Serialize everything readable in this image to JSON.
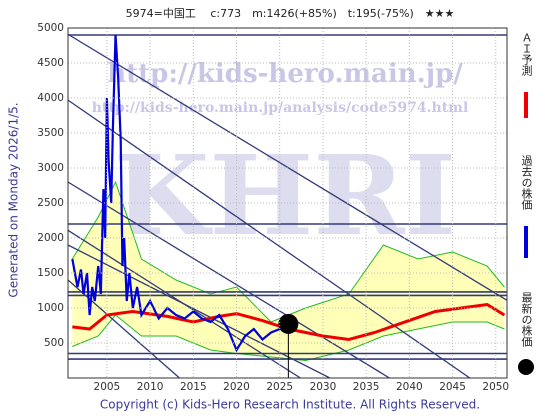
{
  "chart_data": {
    "type": "line",
    "title": "5974=中国工　 c:773　m:1426(+85%)　t:195(-75%)　★★★",
    "generated": "Generated on Monday 2026/1/5.",
    "copyright": "Copyright (c) Kids-Hero Research Institute. All Rights Reserved.",
    "watermarks": [
      "http://kids-hero.main.jp/",
      "http://kids-hero.main.jp/analysis/code5974.html",
      "KHRI"
    ],
    "xlim": [
      2000.5,
      2051.3
    ],
    "ylim": [
      0,
      5000
    ],
    "xticks": [
      2005,
      2010,
      2015,
      2020,
      2025,
      2030,
      2035,
      2040,
      2045,
      2050
    ],
    "yticks": [
      500,
      1000,
      1500,
      2000,
      2500,
      3000,
      3500,
      4000,
      4500,
      5000
    ],
    "grid": true,
    "series": [
      {
        "name": "ＡＩ予測",
        "color": "#ee0000",
        "x": [
          2001,
          2003,
          2005,
          2008,
          2012,
          2015,
          2018,
          2020,
          2023,
          2026,
          2030,
          2033,
          2036,
          2039,
          2043,
          2046,
          2049,
          2051
        ],
        "values": [
          730,
          700,
          900,
          950,
          880,
          800,
          880,
          920,
          820,
          700,
          600,
          550,
          650,
          780,
          950,
          1000,
          1050,
          900
        ]
      },
      {
        "name": "過去の株価",
        "color": "#0000dd",
        "x": [
          2001,
          2001.3,
          2001.6,
          2002,
          2002.3,
          2002.7,
          2003,
          2003.3,
          2003.6,
          2004,
          2004.3,
          2004.6,
          2004.8,
          2005,
          2005.2,
          2005.5,
          2005.7,
          2006,
          2006.3,
          2006.6,
          2006.8,
          2007,
          2007.3,
          2007.6,
          2008,
          2008.5,
          2009,
          2010,
          2011,
          2012,
          2013,
          2014,
          2015,
          2016,
          2017,
          2018,
          2019,
          2020,
          2021,
          2022,
          2023,
          2024,
          2025,
          2025.8
        ],
        "values": [
          1700,
          1500,
          1300,
          1550,
          1200,
          1500,
          900,
          1300,
          1100,
          1600,
          1200,
          2700,
          2000,
          4000,
          3100,
          2500,
          3600,
          4900,
          4300,
          3400,
          1600,
          2000,
          1100,
          1500,
          1000,
          1300,
          900,
          1100,
          850,
          1000,
          900,
          850,
          950,
          850,
          800,
          900,
          700,
          400,
          600,
          700,
          550,
          650,
          700,
          780
        ]
      }
    ],
    "band": {
      "color": "#ffffaa",
      "edge_color": "#22bb22",
      "x": [
        2001,
        2004,
        2006,
        2009,
        2013,
        2017,
        2020,
        2024,
        2028,
        2033,
        2037,
        2041,
        2045,
        2049,
        2051
      ],
      "upper": [
        1700,
        2300,
        2800,
        1700,
        1400,
        1200,
        1300,
        800,
        1000,
        1200,
        1900,
        1700,
        1800,
        1600,
        1300
      ],
      "lower": [
        450,
        600,
        900,
        600,
        600,
        400,
        350,
        300,
        250,
        400,
        600,
        700,
        800,
        800,
        700
      ]
    },
    "h_lines": [
      4900,
      2200,
      1230,
      1180,
      350,
      270
    ],
    "line_color": "#333a7a",
    "trend_lines": [
      {
        "x": [
          2000.5,
          2051.3
        ],
        "values": [
          4910,
          1110
        ]
      },
      {
        "x": [
          2000.5,
          2047
        ],
        "values": [
          3970,
          0
        ]
      },
      {
        "x": [
          2000.5,
          2037.7
        ],
        "values": [
          2800,
          0
        ]
      },
      {
        "x": [
          2000.5,
          2027.4
        ],
        "values": [
          2110,
          0
        ]
      },
      {
        "x": [
          2000.5,
          2030.8
        ],
        "values": [
          1900,
          0
        ]
      },
      {
        "x": [
          2000.5,
          2013.4
        ],
        "values": [
          1400,
          0
        ]
      }
    ],
    "latest": {
      "name": "最新の株価",
      "color": "#000000",
      "x": 2026.0,
      "value": 773
    }
  }
}
